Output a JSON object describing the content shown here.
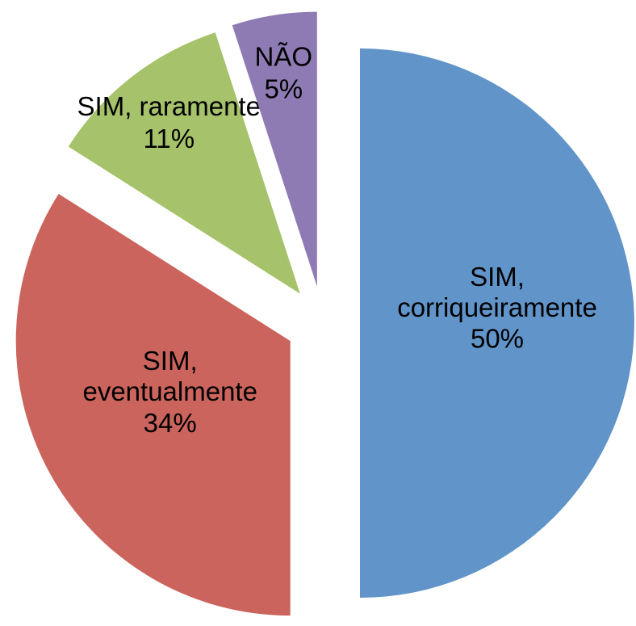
{
  "chart_data": {
    "type": "pie",
    "categories": [
      "SIM, corriqueiramente",
      "SIM, eventualmente",
      "SIM, raramente",
      "NÃO"
    ],
    "values": [
      50,
      34,
      11,
      5
    ],
    "value_labels": [
      "50%",
      "34%",
      "11%",
      "5%"
    ],
    "colors": [
      "#6194c9",
      "#cb645c",
      "#a6c26a",
      "#8f7bb4"
    ]
  }
}
